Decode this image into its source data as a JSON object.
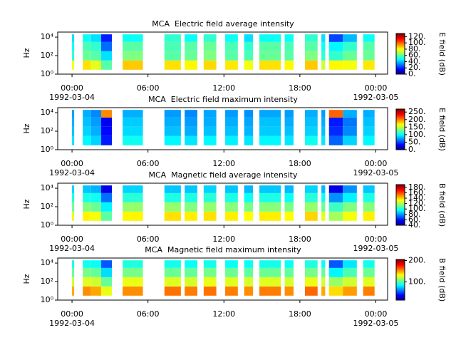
{
  "chart_data": [
    {
      "type": "heatmap",
      "title": "MCA  Electric field average intensity",
      "ylabel": "Hz",
      "colorbar_label": "E field (dB)",
      "ylog": true,
      "ylim": [
        1,
        35000
      ],
      "yticks": [
        {
          "value": 1,
          "label": "10⁰"
        },
        {
          "value": 100,
          "label": "10²"
        },
        {
          "value": 10000,
          "label": "10⁴"
        }
      ],
      "xlim": [
        -1.13,
        24.93
      ],
      "xticks": [
        {
          "value": 0,
          "label": "00:00"
        },
        {
          "value": 6,
          "label": "06:00"
        },
        {
          "value": 12,
          "label": "12:00"
        },
        {
          "value": 18,
          "label": "18:00"
        },
        {
          "value": 24,
          "label": "00:00"
        }
      ],
      "x_sublabels": [
        {
          "value": 0,
          "label": "1992-03-04"
        },
        {
          "value": 24,
          "label": "1992-03-05"
        }
      ],
      "y_edges": [
        3,
        30,
        300,
        3000,
        20000
      ],
      "x_segments": [
        [
          0,
          0.17
        ],
        [
          0.85,
          1.5
        ],
        [
          1.5,
          2.3
        ],
        [
          2.3,
          3.15
        ],
        [
          4.0,
          5.6
        ],
        [
          7.3,
          8.6
        ],
        [
          8.9,
          9.9
        ],
        [
          10.4,
          11.4
        ],
        [
          12.1,
          13.1
        ],
        [
          13.6,
          14.3
        ],
        [
          14.8,
          16.5
        ],
        [
          16.8,
          17.5
        ],
        [
          18.4,
          19.4
        ],
        [
          19.7,
          20.0
        ],
        [
          20.3,
          21.4
        ],
        [
          21.4,
          22.5
        ],
        [
          23.0,
          23.9
        ]
      ],
      "z": [
        [
          80,
          55,
          50,
          45
        ],
        [
          85,
          62,
          58,
          50
        ],
        [
          78,
          60,
          55,
          45
        ],
        [
          60,
          45,
          30,
          20
        ],
        [
          88,
          65,
          60,
          50
        ],
        [
          85,
          60,
          58,
          55
        ],
        [
          82,
          62,
          60,
          50
        ],
        [
          86,
          65,
          62,
          55
        ],
        [
          84,
          60,
          58,
          50
        ],
        [
          80,
          58,
          55,
          45
        ],
        [
          85,
          62,
          60,
          50
        ],
        [
          82,
          60,
          58,
          50
        ],
        [
          88,
          65,
          60,
          55
        ],
        [
          75,
          55,
          50,
          45
        ],
        [
          82,
          55,
          48,
          25
        ],
        [
          80,
          62,
          55,
          40
        ],
        [
          84,
          62,
          60,
          50
        ]
      ],
      "clim": [
        0,
        130
      ],
      "cticks": [
        {
          "value": 0,
          "label": "0."
        },
        {
          "value": 20,
          "label": "20."
        },
        {
          "value": 40,
          "label": "40."
        },
        {
          "value": 60,
          "label": "60."
        },
        {
          "value": 80,
          "label": "80."
        },
        {
          "value": 100,
          "label": "100."
        },
        {
          "value": 120,
          "label": "120."
        }
      ]
    },
    {
      "type": "heatmap",
      "title": "MCA  Electric field maximum intensity",
      "ylabel": "Hz",
      "colorbar_label": "E field (dB)",
      "ylog": true,
      "ylim": [
        1,
        35000
      ],
      "yticks": [
        {
          "value": 1,
          "label": "10⁰"
        },
        {
          "value": 100,
          "label": "10²"
        },
        {
          "value": 10000,
          "label": "10⁴"
        }
      ],
      "xlim": [
        -1.13,
        24.93
      ],
      "xticks": [
        {
          "value": 0,
          "label": "00:00"
        },
        {
          "value": 6,
          "label": "06:00"
        },
        {
          "value": 12,
          "label": "12:00"
        },
        {
          "value": 18,
          "label": "18:00"
        },
        {
          "value": 24,
          "label": "00:00"
        }
      ],
      "x_sublabels": [
        {
          "value": 0,
          "label": "1992-03-04"
        },
        {
          "value": 24,
          "label": "1992-03-05"
        }
      ],
      "y_edges": [
        3,
        30,
        300,
        3000,
        20000
      ],
      "x_segments": [
        [
          0,
          0.17
        ],
        [
          0.85,
          1.5
        ],
        [
          1.5,
          2.3
        ],
        [
          2.3,
          3.15
        ],
        [
          4.0,
          5.6
        ],
        [
          7.3,
          8.6
        ],
        [
          8.9,
          9.9
        ],
        [
          10.4,
          11.4
        ],
        [
          12.1,
          13.1
        ],
        [
          13.6,
          14.3
        ],
        [
          14.8,
          16.5
        ],
        [
          16.8,
          17.5
        ],
        [
          18.4,
          19.4
        ],
        [
          19.7,
          20.0
        ],
        [
          20.3,
          21.4
        ],
        [
          21.4,
          22.5
        ],
        [
          23.0,
          23.9
        ]
      ],
      "z": [
        [
          95,
          85,
          80,
          75
        ],
        [
          100,
          90,
          85,
          80
        ],
        [
          90,
          80,
          75,
          70
        ],
        [
          40,
          35,
          30,
          200
        ],
        [
          105,
          92,
          88,
          80
        ],
        [
          100,
          85,
          80,
          75
        ],
        [
          95,
          80,
          75,
          70
        ],
        [
          100,
          85,
          80,
          78
        ],
        [
          98,
          85,
          80,
          75
        ],
        [
          95,
          82,
          78,
          72
        ],
        [
          100,
          88,
          85,
          78
        ],
        [
          95,
          85,
          80,
          75
        ],
        [
          105,
          90,
          85,
          80
        ],
        [
          95,
          85,
          80,
          75
        ],
        [
          60,
          45,
          40,
          210
        ],
        [
          90,
          70,
          65,
          80
        ],
        [
          100,
          90,
          85,
          80
        ]
      ],
      "clim": [
        0,
        270
      ],
      "cticks": [
        {
          "value": 0,
          "label": "0."
        },
        {
          "value": 50,
          "label": "50."
        },
        {
          "value": 100,
          "label": "100."
        },
        {
          "value": 150,
          "label": "150."
        },
        {
          "value": 200,
          "label": "200."
        },
        {
          "value": 250,
          "label": "250."
        }
      ]
    },
    {
      "type": "heatmap",
      "title": "MCA  Magnetic field average intensity",
      "ylabel": "Hz",
      "colorbar_label": "B field (dB)",
      "ylog": true,
      "ylim": [
        1,
        35000
      ],
      "yticks": [
        {
          "value": 1,
          "label": "10⁰"
        },
        {
          "value": 100,
          "label": "10²"
        },
        {
          "value": 10000,
          "label": "10⁴"
        }
      ],
      "xlim": [
        -1.13,
        24.93
      ],
      "xticks": [
        {
          "value": 0,
          "label": "00:00"
        },
        {
          "value": 6,
          "label": "06:00"
        },
        {
          "value": 12,
          "label": "12:00"
        },
        {
          "value": 18,
          "label": "18:00"
        },
        {
          "value": 24,
          "label": "00:00"
        }
      ],
      "x_sublabels": [
        {
          "value": 0,
          "label": "1992-03-04"
        },
        {
          "value": 24,
          "label": "1992-03-05"
        }
      ],
      "y_edges": [
        3,
        30,
        300,
        3000,
        20000
      ],
      "x_segments": [
        [
          0,
          0.17
        ],
        [
          0.85,
          1.5
        ],
        [
          1.5,
          2.3
        ],
        [
          2.3,
          3.15
        ],
        [
          4.0,
          5.6
        ],
        [
          7.3,
          8.6
        ],
        [
          8.9,
          9.9
        ],
        [
          10.4,
          11.4
        ],
        [
          12.1,
          13.1
        ],
        [
          13.6,
          14.3
        ],
        [
          14.8,
          16.5
        ],
        [
          16.8,
          17.5
        ],
        [
          18.4,
          19.4
        ],
        [
          19.7,
          20.0
        ],
        [
          20.3,
          21.4
        ],
        [
          21.4,
          22.5
        ],
        [
          23.0,
          23.9
        ]
      ],
      "z": [
        [
          130,
          112,
          100,
          90
        ],
        [
          135,
          115,
          100,
          88
        ],
        [
          132,
          112,
          98,
          85
        ],
        [
          110,
          95,
          75,
          55
        ],
        [
          135,
          118,
          102,
          90
        ],
        [
          138,
          118,
          100,
          88
        ],
        [
          136,
          115,
          100,
          88
        ],
        [
          138,
          118,
          102,
          90
        ],
        [
          136,
          116,
          100,
          88
        ],
        [
          134,
          114,
          98,
          86
        ],
        [
          136,
          116,
          100,
          88
        ],
        [
          134,
          114,
          98,
          86
        ],
        [
          140,
          118,
          102,
          90
        ],
        [
          130,
          112,
          98,
          86
        ],
        [
          120,
          105,
          80,
          55
        ],
        [
          132,
          115,
          95,
          80
        ],
        [
          136,
          116,
          100,
          88
        ]
      ],
      "clim": [
        40,
        190
      ],
      "cticks": [
        {
          "value": 40,
          "label": "40."
        },
        {
          "value": 60,
          "label": "60."
        },
        {
          "value": 80,
          "label": "80."
        },
        {
          "value": 100,
          "label": "100."
        },
        {
          "value": 120,
          "label": "120."
        },
        {
          "value": 140,
          "label": "140."
        },
        {
          "value": 160,
          "label": "160."
        },
        {
          "value": 180,
          "label": "180."
        }
      ]
    },
    {
      "type": "heatmap",
      "title": "MCA  Magnetic field maximum intensity",
      "ylabel": "Hz",
      "colorbar_label": "B field (dB)",
      "ylog": true,
      "ylim": [
        1,
        35000
      ],
      "yticks": [
        {
          "value": 1,
          "label": "10⁰"
        },
        {
          "value": 100,
          "label": "10²"
        },
        {
          "value": 10000,
          "label": "10⁴"
        }
      ],
      "xlim": [
        -1.13,
        24.93
      ],
      "xticks": [
        {
          "value": 0,
          "label": "00:00"
        },
        {
          "value": 6,
          "label": "06:00"
        },
        {
          "value": 12,
          "label": "12:00"
        },
        {
          "value": 18,
          "label": "18:00"
        },
        {
          "value": 24,
          "label": "00:00"
        }
      ],
      "x_sublabels": [
        {
          "value": 0,
          "label": "1992-03-04"
        },
        {
          "value": 24,
          "label": "1992-03-05"
        }
      ],
      "y_edges": [
        3,
        30,
        300,
        3000,
        20000
      ],
      "x_segments": [
        [
          0,
          0.17
        ],
        [
          0.85,
          1.5
        ],
        [
          1.5,
          2.3
        ],
        [
          2.3,
          3.15
        ],
        [
          4.0,
          5.6
        ],
        [
          7.3,
          8.6
        ],
        [
          8.9,
          9.9
        ],
        [
          10.4,
          11.4
        ],
        [
          12.1,
          13.1
        ],
        [
          13.6,
          14.3
        ],
        [
          14.8,
          16.5
        ],
        [
          16.8,
          17.5
        ],
        [
          18.4,
          19.4
        ],
        [
          19.7,
          20.0
        ],
        [
          20.3,
          21.4
        ],
        [
          21.4,
          22.5
        ],
        [
          23.0,
          23.9
        ]
      ],
      "z": [
        [
          150,
          125,
          105,
          90
        ],
        [
          155,
          128,
          108,
          90
        ],
        [
          150,
          125,
          105,
          88
        ],
        [
          130,
          105,
          80,
          55
        ],
        [
          155,
          130,
          108,
          92
        ],
        [
          160,
          128,
          106,
          90
        ],
        [
          158,
          126,
          105,
          88
        ],
        [
          160,
          130,
          108,
          90
        ],
        [
          158,
          128,
          106,
          88
        ],
        [
          155,
          126,
          104,
          88
        ],
        [
          158,
          128,
          106,
          90
        ],
        [
          155,
          126,
          104,
          88
        ],
        [
          162,
          130,
          108,
          92
        ],
        [
          150,
          125,
          104,
          88
        ],
        [
          140,
          115,
          85,
          55
        ],
        [
          152,
          125,
          100,
          82
        ],
        [
          158,
          128,
          106,
          90
        ]
      ],
      "clim": [
        15,
        205
      ],
      "cticks": [
        {
          "value": 100,
          "label": "100."
        },
        {
          "value": 200,
          "label": "200."
        }
      ]
    }
  ]
}
